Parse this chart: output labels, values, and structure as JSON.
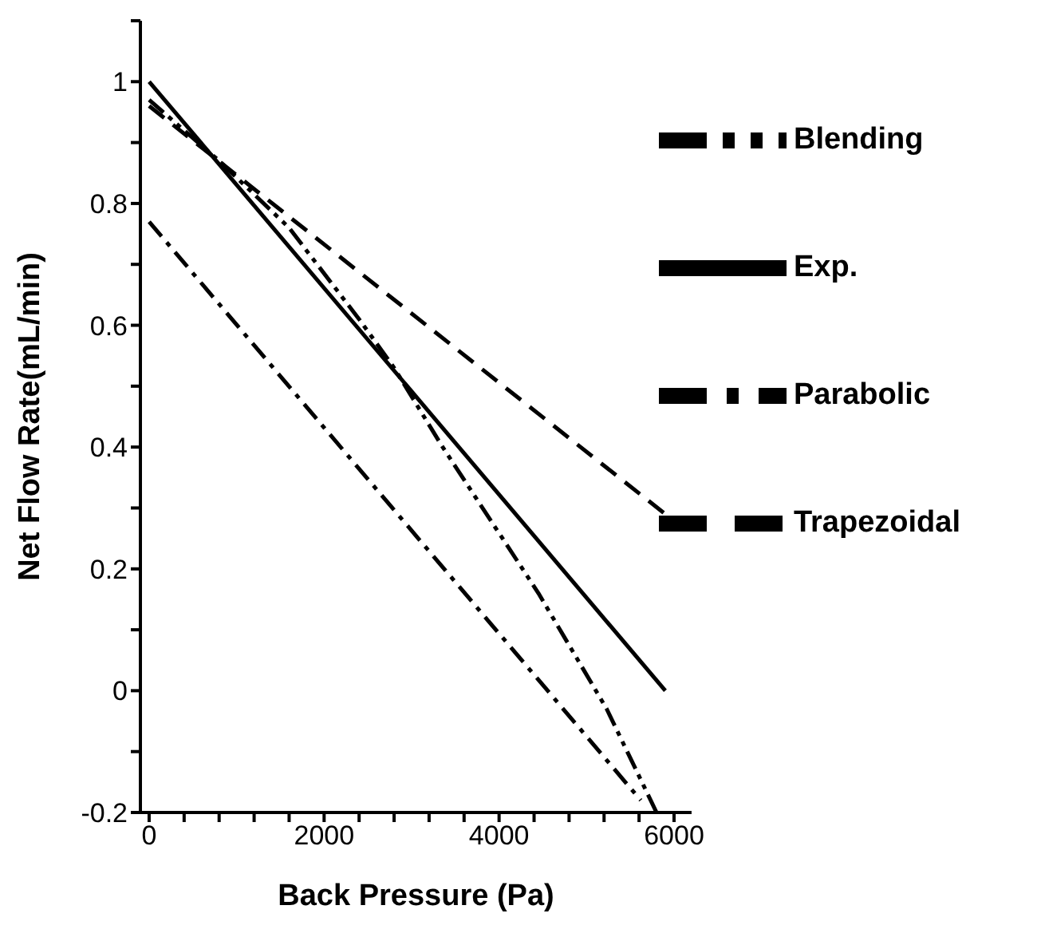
{
  "chart_data": {
    "type": "line",
    "xlabel": "Back Pressure (Pa)",
    "ylabel": "Net Flow Rate(mL/min)",
    "xlim": [
      -100,
      6200
    ],
    "ylim": [
      -0.2,
      1.1
    ],
    "xticks": [
      0,
      {
        "value": 400,
        "label": null
      },
      {
        "value": 800,
        "label": null
      },
      {
        "value": 1200,
        "label": null
      },
      {
        "value": 1600,
        "label": null
      },
      2000,
      {
        "value": 2400,
        "label": null
      },
      {
        "value": 2800,
        "label": null
      },
      {
        "value": 3200,
        "label": null
      },
      {
        "value": 3600,
        "label": null
      },
      4000,
      {
        "value": 4400,
        "label": null
      },
      {
        "value": 4800,
        "label": null
      },
      {
        "value": 5200,
        "label": null
      },
      {
        "value": 5600,
        "label": null
      },
      6000
    ],
    "yticks": [
      -0.2,
      {
        "value": -0.1,
        "label": null
      },
      0,
      {
        "value": 0.1,
        "label": null
      },
      0.2,
      {
        "value": 0.3,
        "label": null
      },
      0.4,
      {
        "value": 0.5,
        "label": null
      },
      0.6,
      {
        "value": 0.7,
        "label": null
      },
      0.8,
      {
        "value": 0.9,
        "label": null
      },
      1,
      {
        "value": 1.1,
        "label": null
      }
    ],
    "grid": false,
    "legend": "top right",
    "marker": "none",
    "series": [
      {
        "name": "Exp.",
        "color": "#000000",
        "line_style": "solid",
        "x": [
          0,
          5900
        ],
        "values": [
          1,
          0
        ]
      },
      {
        "name": "Trapezoidal",
        "color": "#000000",
        "line_style": "dashed",
        "x": [
          0,
          5900
        ],
        "values": [
          0.96,
          0.29
        ]
      },
      {
        "name": "Parabolic",
        "color": "#000000",
        "line_style": "dashdot",
        "x": [
          0,
          5620
        ],
        "values": [
          0.77,
          -0.18
        ]
      },
      {
        "name": "Blending",
        "color": "#000000",
        "line_style": "dashdotdot",
        "x": [
          0,
          800,
          1600,
          2400,
          2800,
          3355,
          4450,
          5230,
          5800
        ],
        "values": [
          0.97,
          0.87,
          0.76,
          0.61,
          0.53,
          0.4,
          0.16,
          -0.03,
          -0.2
        ]
      }
    ]
  }
}
